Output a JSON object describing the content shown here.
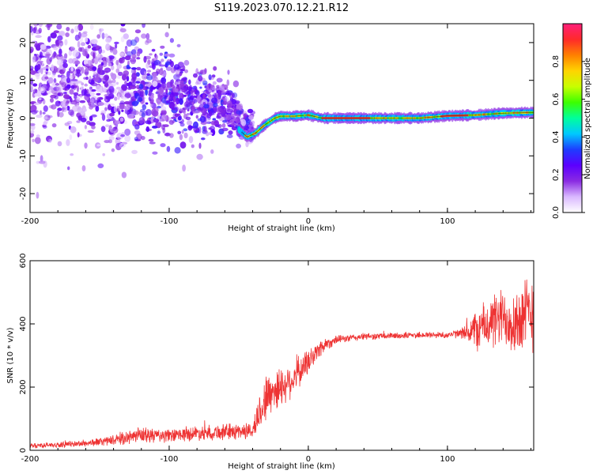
{
  "page": {
    "title": "S119.2023.070.12.21.R12"
  },
  "colorbar": {
    "label": "Normalized spectral amplitude",
    "ticks": [
      0.0,
      0.2,
      0.4,
      0.6,
      0.8
    ],
    "tick_labels": [
      "0.0",
      "0.2",
      "0.4",
      "0.6",
      "0.8"
    ],
    "range": [
      0,
      1
    ],
    "colormap": [
      "#ffffff",
      "#d9b8ff",
      "#8a2be2",
      "#5b00ff",
      "#1e3cff",
      "#00c8ff",
      "#00ff9c",
      "#3cff00",
      "#c8ff00",
      "#ffd400",
      "#ff8000",
      "#ff2a2a",
      "#ff1f7a"
    ]
  },
  "chart_data": [
    {
      "type": "heatmap",
      "title": "",
      "xlabel": "Height of straight line (km)",
      "ylabel": "Frequency (Hz)",
      "xlim": [
        -200,
        162
      ],
      "ylim": [
        -25,
        25
      ],
      "x_ticks": [
        -200,
        -100,
        0,
        100
      ],
      "x_tick_labels": [
        "-200",
        "-100",
        "0",
        "100"
      ],
      "y_ticks": [
        -20,
        -10,
        0,
        10,
        20
      ],
      "y_tick_labels": [
        "-20",
        "-10",
        "0",
        "10",
        "20"
      ],
      "ridge": {
        "description_points_x": [
          -50,
          -44,
          -38,
          -32,
          -28,
          -24,
          -20,
          -10,
          0,
          10,
          40,
          80,
          100,
          120,
          140,
          162
        ],
        "description_points_y": [
          -3,
          -5,
          -4,
          -2,
          -1,
          0,
          0.5,
          0.5,
          0.8,
          0,
          0,
          0,
          0.6,
          0.8,
          1.3,
          1.5
        ],
        "amplitude": 0.9
      },
      "scatter_region": {
        "x_range": [
          -200,
          -40
        ],
        "center_freq_at_x": [
          [
            -200,
            12
          ],
          [
            -150,
            9
          ],
          [
            -100,
            6
          ],
          [
            -60,
            3
          ],
          [
            -40,
            -3
          ]
        ],
        "spread_hz": [
          [
            -200,
            14
          ],
          [
            -150,
            12
          ],
          [
            -100,
            9
          ],
          [
            -60,
            5
          ],
          [
            -40,
            3
          ]
        ]
      }
    },
    {
      "type": "line",
      "title": "",
      "xlabel": "Height of straight line (km)",
      "ylabel": "SNR (10 * v/v)",
      "xlim": [
        -200,
        162
      ],
      "ylim": [
        0,
        600
      ],
      "x_ticks": [
        -200,
        -100,
        0,
        100
      ],
      "x_tick_labels": [
        "-200",
        "-100",
        "0",
        "100"
      ],
      "y_ticks": [
        0,
        200,
        400,
        600
      ],
      "y_tick_labels": [
        "0",
        "200",
        "400",
        "600"
      ],
      "series": [
        {
          "color": "#ee3333",
          "envelope_x": [
            -200,
            -180,
            -160,
            -140,
            -120,
            -100,
            -80,
            -60,
            -40,
            -35,
            -30,
            -25,
            -20,
            -10,
            0,
            10,
            20,
            40,
            60,
            80,
            100,
            110,
            120,
            130,
            140,
            150,
            162
          ],
          "envelope_mean": [
            15,
            17,
            22,
            32,
            48,
            45,
            55,
            58,
            62,
            120,
            170,
            190,
            200,
            230,
            280,
            330,
            350,
            360,
            362,
            365,
            365,
            370,
            380,
            400,
            420,
            410,
            440
          ],
          "envelope_noise": [
            8,
            8,
            10,
            15,
            25,
            20,
            22,
            25,
            25,
            60,
            70,
            70,
            60,
            50,
            40,
            25,
            12,
            10,
            10,
            10,
            10,
            14,
            60,
            80,
            90,
            110,
            120
          ]
        }
      ]
    }
  ]
}
